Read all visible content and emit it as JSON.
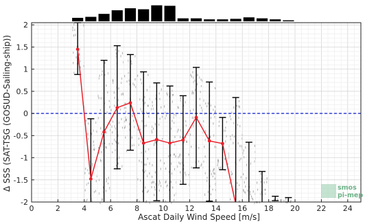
{
  "chart_data": {
    "type": "line",
    "xlabel": "Ascat Daily Wind Speed [m/s]",
    "ylabel": "Δ SSS (SAT-TSG (GOSUD-Sailing-ship))",
    "xlim": [
      0,
      25
    ],
    "ylim": [
      -2,
      2.05
    ],
    "xticks": [
      "0",
      "2",
      "4",
      "6",
      "8",
      "10",
      "12",
      "14",
      "16",
      "18",
      "20",
      "22",
      "24"
    ],
    "yticks": [
      "2",
      "1.5",
      "1",
      "0.5",
      "0",
      "-0.5",
      "-1",
      "-1.5",
      "-2"
    ],
    "grid": true,
    "reference_line": {
      "y": 0,
      "style": "dashed",
      "color": "#1f2fd6"
    },
    "series": [
      {
        "kind": "mean-with-errorbars",
        "color": "#e8202a",
        "points": [
          {
            "x": 3.5,
            "y": 1.45,
            "lo": 0.88,
            "hi": 2.05
          },
          {
            "x": 4.5,
            "y": -1.48,
            "lo": -2.0,
            "hi": -0.12
          },
          {
            "x": 5.5,
            "y": -0.42,
            "lo": -2.0,
            "hi": 1.2
          },
          {
            "x": 6.5,
            "y": 0.13,
            "lo": -1.25,
            "hi": 1.53
          },
          {
            "x": 7.5,
            "y": 0.24,
            "lo": -0.83,
            "hi": 1.33
          },
          {
            "x": 8.5,
            "y": -0.67,
            "lo": -2.0,
            "hi": 0.94
          },
          {
            "x": 9.5,
            "y": -0.59,
            "lo": -1.97,
            "hi": 0.69
          },
          {
            "x": 10.5,
            "y": -0.67,
            "lo": -2.0,
            "hi": 0.62
          },
          {
            "x": 11.5,
            "y": -0.6,
            "lo": -1.6,
            "hi": 0.4
          },
          {
            "x": 12.5,
            "y": -0.09,
            "lo": -1.23,
            "hi": 1.04
          },
          {
            "x": 13.5,
            "y": -0.62,
            "lo": -1.98,
            "hi": 0.71
          },
          {
            "x": 14.5,
            "y": -0.68,
            "lo": -1.27,
            "hi": -0.09
          },
          {
            "x": 15.5,
            "y": -2.05,
            "lo": -2.0,
            "hi": 0.36
          },
          {
            "x": 16.5,
            "y": null,
            "lo": -2.0,
            "hi": -0.65
          },
          {
            "x": 17.5,
            "y": null,
            "lo": -2.0,
            "hi": -1.31
          },
          {
            "x": 18.5,
            "y": null,
            "lo": -1.97,
            "hi": -1.87
          },
          {
            "x": 19.5,
            "y": null,
            "lo": -2.0,
            "hi": -1.9
          }
        ]
      }
    ],
    "histogram": {
      "x": [
        3.5,
        4.5,
        5.5,
        6.5,
        7.5,
        8.5,
        9.5,
        10.5,
        11.5,
        12.5,
        13.5,
        14.5,
        15.5,
        16.5,
        17.5,
        18.5,
        19.5
      ],
      "counts": [
        0.21,
        0.27,
        0.45,
        0.67,
        0.79,
        0.73,
        0.97,
        0.94,
        0.18,
        0.18,
        0.12,
        0.12,
        0.15,
        0.24,
        0.18,
        0.12,
        0.06
      ]
    }
  },
  "logo": {
    "line1": "smos",
    "line2": "pi-mep",
    "color": "#6fb38a"
  }
}
